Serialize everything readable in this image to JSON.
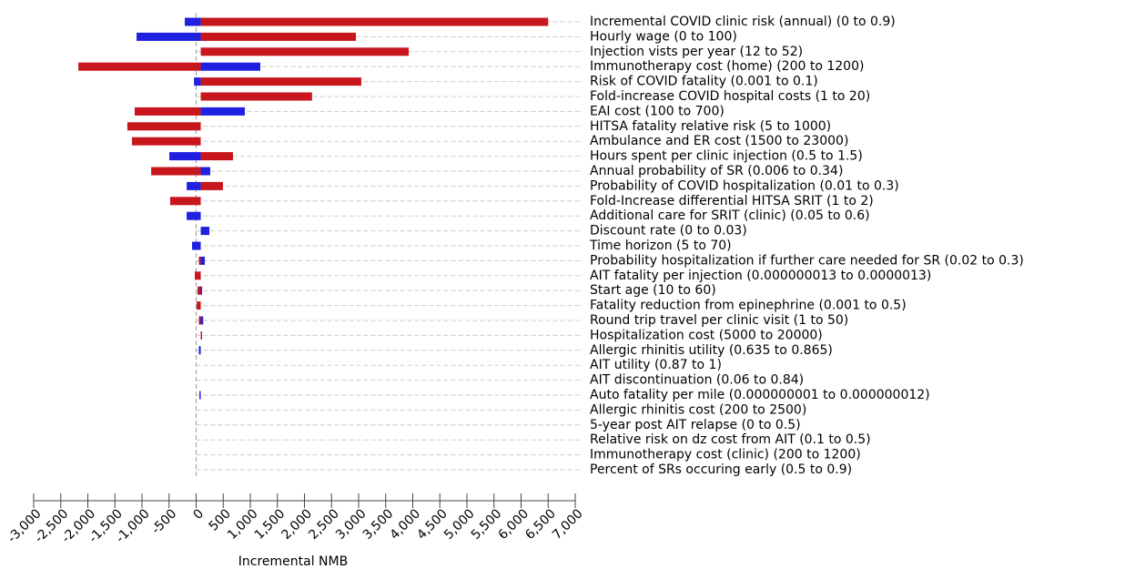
{
  "chart_data": {
    "type": "tornado",
    "categories": [
      "Incremental COVID clinic risk (annual) (0 to 0.9)",
      "Hourly wage (0 to 100)",
      "Injection vists per year (12 to 52)",
      "Immunotherapy cost (home) (200 to 1200)",
      "Risk of COVID fatality (0.001 to 0.1)",
      "Fold-increase COVID hospital costs (1 to 20)",
      "EAI cost (100 to 700)",
      "HITSA fatality relative risk (5 to 1000)",
      "Ambulance and ER cost (1500 to 23000)",
      "Hours spent per clinic injection (0.5 to 1.5)",
      "Annual probability of SR (0.006 to 0.34)",
      "Probability of COVID hospitalization (0.01 to 0.3)",
      "Fold-Increase differential HITSA SRIT (1 to 2)",
      "Additional care for SRIT (clinic) (0.05 to 0.6)",
      "Discount rate (0 to 0.03)",
      "Time horizon (5 to 70)",
      "Probability hospitalization if further care needed for SR (0.02 to 0.3)",
      "AIT fatality per injection (0.000000013 to 0.0000013)",
      "Start age (10 to 60)",
      "Fatality reduction from epinephrine (0.001 to 0.5)",
      "Round trip travel per clinic visit (1 to 50)",
      "Hospitalization cost (5000 to 20000)",
      "Allergic rhinitis utility (0.635 to 0.865)",
      "AIT utility (0.87 to 1)",
      "AIT discontinuation (0.06 to 0.84)",
      "Auto fatality per mile (0.000000001 to 0.000000012)",
      "Allergic rhinitis cost (200 to 2500)",
      "5-year post AIT relapse (0 to 0.5)",
      "Relative risk on dz cost from AIT (0.1 to 0.5)",
      "Immunotherapy cost (clinic) (200 to 1200)",
      "Percent of SRs occuring early (0.5 to 0.9)"
    ],
    "base": 85,
    "series": [
      {
        "color": "#c8161d",
        "values": [
          6500,
          2950,
          3925,
          -2175,
          3050,
          2140,
          -1135,
          -1270,
          -1185,
          680,
          -830,
          495,
          -480,
          85,
          85,
          85,
          50,
          -25,
          25,
          10,
          50,
          110,
          85,
          85,
          85,
          85,
          85,
          85,
          85,
          85,
          85
        ]
      },
      {
        "color": "#2020e0",
        "values": [
          -210,
          -1100,
          85,
          1185,
          -40,
          85,
          900,
          85,
          85,
          -495,
          260,
          -175,
          85,
          -175,
          245,
          -75,
          160,
          85,
          110,
          85,
          130,
          85,
          50,
          85,
          85,
          60,
          85,
          85,
          85,
          85,
          85
        ]
      }
    ],
    "xlabel": "Incremental NMB",
    "xlim": [
      -3000,
      7000
    ],
    "xticks": [
      {
        "value": -3000,
        "label": "-3,000"
      },
      {
        "value": -2500,
        "label": "-2,500"
      },
      {
        "value": -2000,
        "label": "-2,000"
      },
      {
        "value": -1500,
        "label": "-1,500"
      },
      {
        "value": -1000,
        "label": "-1,000"
      },
      -500,
      0,
      500,
      {
        "value": 1000,
        "label": "1,000"
      },
      {
        "value": 1500,
        "label": "1,500"
      },
      {
        "value": 2000,
        "label": "2,000"
      },
      {
        "value": 2500,
        "label": "2,500"
      },
      {
        "value": 3000,
        "label": "3,000"
      },
      {
        "value": 3500,
        "label": "3,500"
      },
      {
        "value": 4000,
        "label": "4,000"
      },
      {
        "value": 4500,
        "label": "4,500"
      },
      {
        "value": 5000,
        "label": "5,000"
      },
      {
        "value": 5500,
        "label": "5,500"
      },
      {
        "value": 6000,
        "label": "6,000"
      },
      {
        "value": 6500,
        "label": "6,500"
      },
      {
        "value": 7000,
        "label": "7,000"
      }
    ],
    "grid": true
  }
}
